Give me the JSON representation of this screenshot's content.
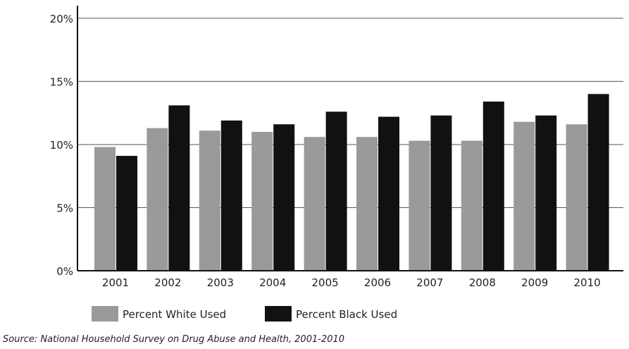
{
  "chart_data": {
    "type": "bar",
    "categories": [
      "2001",
      "2002",
      "2003",
      "2004",
      "2005",
      "2006",
      "2007",
      "2008",
      "2009",
      "2010"
    ],
    "series": [
      {
        "name": "Percent White Used",
        "values": [
          9.8,
          11.3,
          11.1,
          11.0,
          10.6,
          10.6,
          10.3,
          10.3,
          11.8,
          11.6
        ],
        "color": "#9a9a9a"
      },
      {
        "name": "Percent Black Used",
        "values": [
          9.1,
          13.1,
          11.9,
          11.6,
          12.6,
          12.2,
          12.3,
          13.4,
          12.3,
          14.0
        ],
        "color": "#111111"
      }
    ],
    "yticks": [
      "0%",
      "5%",
      "10%",
      "15%",
      "20%"
    ],
    "ylim": [
      0,
      21
    ],
    "grid": "horizontal",
    "legend_position": "bottom",
    "source": "Source: National Household Survey on Drug Abuse and Health, 2001-2010"
  }
}
